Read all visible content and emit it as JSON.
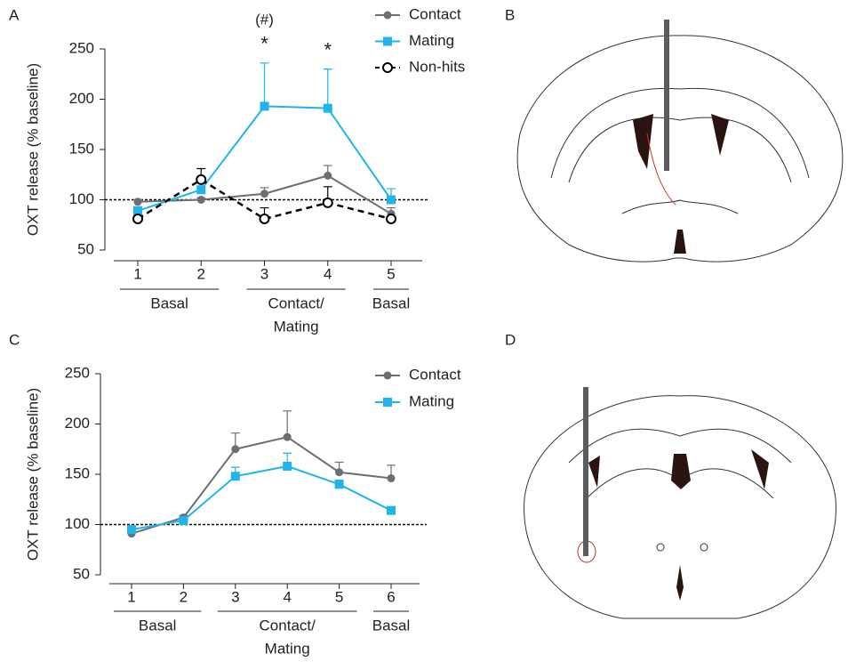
{
  "chart_data": [
    {
      "type": "line",
      "panel_label": "A",
      "y_label": "OXT release (% baseline)",
      "categories": [
        "1",
        "2",
        "3",
        "4",
        "5"
      ],
      "ylim": [
        50,
        250
      ],
      "yticks": [
        50,
        100,
        150,
        200,
        250
      ],
      "hline": 100,
      "series": [
        {
          "name": "Contact",
          "color": "#6d6e71",
          "marker": "circle",
          "dashed": false,
          "values": [
            98,
            100,
            106,
            124,
            86
          ],
          "errors": [
            2,
            2,
            6,
            10,
            6
          ]
        },
        {
          "name": "Mating",
          "color": "#1fb5ea",
          "marker": "square",
          "dashed": false,
          "values": [
            89,
            110,
            193,
            191,
            100
          ],
          "errors": [
            4,
            9,
            43,
            39,
            11
          ]
        },
        {
          "name": "Non-hits",
          "color": "#000000",
          "marker": "open-circle",
          "dashed": true,
          "values": [
            81,
            120,
            81,
            97,
            81
          ],
          "errors": [
            2,
            11,
            11,
            16,
            2
          ]
        }
      ],
      "significance": [
        null,
        null,
        "*",
        "*",
        null
      ],
      "trend": [
        null,
        null,
        "(#)",
        null,
        null
      ],
      "groups": [
        {
          "lines": [
            "Basal"
          ],
          "start": 0,
          "end": 1
        },
        {
          "lines": [
            "Contact/",
            "Mating"
          ],
          "start": 2,
          "end": 3
        },
        {
          "lines": [
            "Basal"
          ],
          "start": 4,
          "end": 4
        }
      ]
    },
    {
      "type": "line",
      "panel_label": "C",
      "y_label": "OXT release (% baseline)",
      "categories": [
        "1",
        "2",
        "3",
        "4",
        "5",
        "6"
      ],
      "ylim": [
        50,
        250
      ],
      "yticks": [
        50,
        100,
        150,
        200,
        250
      ],
      "hline": 100,
      "series": [
        {
          "name": "Contact",
          "color": "#6d6e71",
          "marker": "circle",
          "dashed": false,
          "values": [
            91,
            107,
            175,
            187,
            152,
            146
          ],
          "errors": [
            2,
            2,
            16,
            26,
            10,
            13
          ]
        },
        {
          "name": "Mating",
          "color": "#1fb5ea",
          "marker": "square",
          "dashed": false,
          "values": [
            95,
            104,
            148,
            158,
            140,
            114
          ],
          "errors": [
            2,
            2,
            9,
            13,
            4,
            3
          ]
        }
      ],
      "groups": [
        {
          "lines": [
            "Basal"
          ],
          "start": 0,
          "end": 1
        },
        {
          "lines": [
            "Contact/",
            "Mating"
          ],
          "start": 2,
          "end": 4
        },
        {
          "lines": [
            "Basal"
          ],
          "start": 5,
          "end": 5
        }
      ]
    }
  ],
  "diagrams": [
    {
      "panel_label": "B"
    },
    {
      "panel_label": "D"
    }
  ]
}
